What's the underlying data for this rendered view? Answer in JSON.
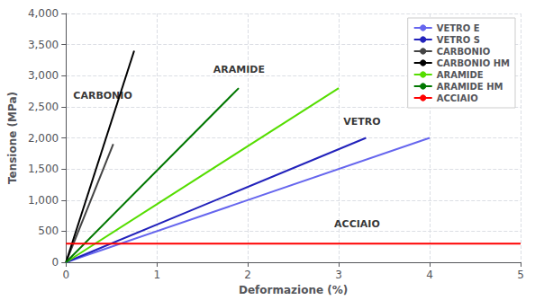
{
  "chart_data": {
    "type": "line",
    "xlabel": "Deformazione (%)",
    "ylabel": "Tensione (MPa)",
    "xlim": [
      0,
      5
    ],
    "ylim": [
      0,
      4000
    ],
    "xticks": [
      0,
      1,
      2,
      3,
      4,
      5
    ],
    "yticks": [
      0,
      500,
      1000,
      1500,
      2000,
      2500,
      3000,
      3500,
      4000
    ],
    "grid": true,
    "legend": "upper right",
    "series": [
      {
        "name": "VETRO E",
        "color": "#6666EE",
        "x": [
          0,
          4.0
        ],
        "values": [
          0,
          2000
        ]
      },
      {
        "name": "VETRO S",
        "color": "#2222BB",
        "x": [
          0,
          3.3
        ],
        "values": [
          0,
          2000
        ]
      },
      {
        "name": "CARBONIO",
        "color": "#444444",
        "x": [
          0,
          0.52
        ],
        "values": [
          0,
          1900
        ]
      },
      {
        "name": "CARBONIO HM",
        "color": "#000000",
        "x": [
          0,
          0.75
        ],
        "values": [
          0,
          3400
        ]
      },
      {
        "name": "ARAMIDE",
        "color": "#55DD00",
        "x": [
          0,
          3.0
        ],
        "values": [
          0,
          2800
        ]
      },
      {
        "name": "ARAMIDE HM",
        "color": "#007700",
        "x": [
          0,
          1.9
        ],
        "values": [
          0,
          2800
        ]
      },
      {
        "name": "ACCIAIO",
        "color": "#FF0000",
        "x": [
          0,
          5.0
        ],
        "values": [
          300,
          300
        ]
      }
    ],
    "annotations": [
      {
        "text": "CARBONIO",
        "x": 0.08,
        "y": 2600
      },
      {
        "text": "ARAMIDE",
        "x": 1.62,
        "y": 3020
      },
      {
        "text": "VETRO",
        "x": 3.05,
        "y": 2180
      },
      {
        "text": "ACCIAIO",
        "x": 2.95,
        "y": 530
      }
    ]
  }
}
